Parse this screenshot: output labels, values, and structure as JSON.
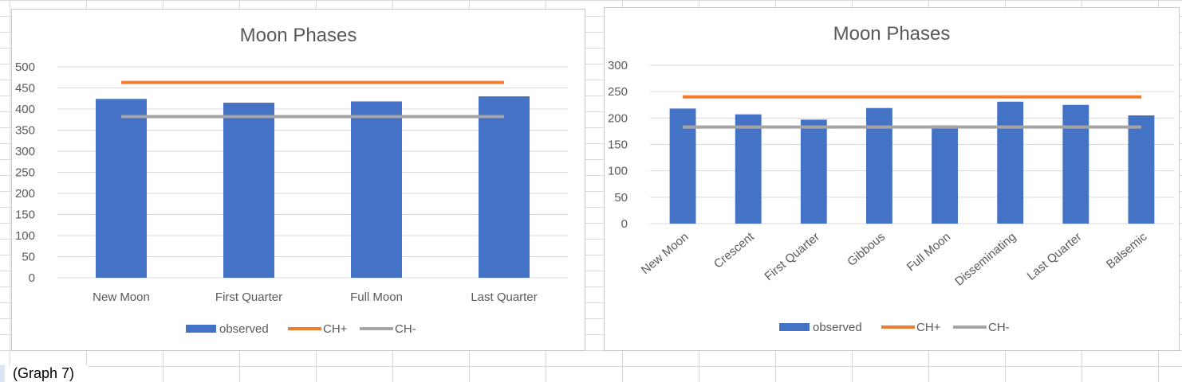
{
  "caption": "(Graph 7)",
  "colors": {
    "observed": "#4472c4",
    "ch_plus": "#ed7d31",
    "ch_minus": "#a5a5a5",
    "grid": "#d9d9d9"
  },
  "chart_data": [
    {
      "type": "bar",
      "title": "Moon Phases",
      "categories": [
        "New Moon",
        "First Quarter",
        "Full Moon",
        "Last Quarter"
      ],
      "ylim": [
        0,
        500
      ],
      "yticks": [
        0,
        50,
        100,
        150,
        200,
        250,
        300,
        350,
        400,
        450,
        500
      ],
      "series": [
        {
          "name": "observed",
          "type": "bar",
          "values": [
            424,
            415,
            418,
            430
          ]
        },
        {
          "name": "CH+",
          "type": "line",
          "values": [
            463,
            463,
            463,
            463
          ]
        },
        {
          "name": "CH-",
          "type": "line",
          "values": [
            382,
            382,
            382,
            382
          ]
        }
      ],
      "grid": true,
      "legend": "bottom"
    },
    {
      "type": "bar",
      "title": "Moon Phases",
      "categories": [
        "New Moon",
        "Crescent",
        "First Quarter",
        "Gibbous",
        "Full Moon",
        "Disseminating",
        "Last Quarter",
        "Balsemic"
      ],
      "ylim": [
        0,
        300
      ],
      "yticks": [
        0,
        50,
        100,
        150,
        200,
        250,
        300
      ],
      "series": [
        {
          "name": "observed",
          "type": "bar",
          "values": [
            218,
            207,
            197,
            219,
            186,
            231,
            225,
            205
          ]
        },
        {
          "name": "CH+",
          "type": "line",
          "values": [
            240,
            240,
            240,
            240,
            240,
            240,
            240,
            240
          ]
        },
        {
          "name": "CH-",
          "type": "line",
          "values": [
            183,
            183,
            183,
            183,
            183,
            183,
            183,
            183
          ]
        }
      ],
      "grid": true,
      "legend": "bottom"
    }
  ]
}
